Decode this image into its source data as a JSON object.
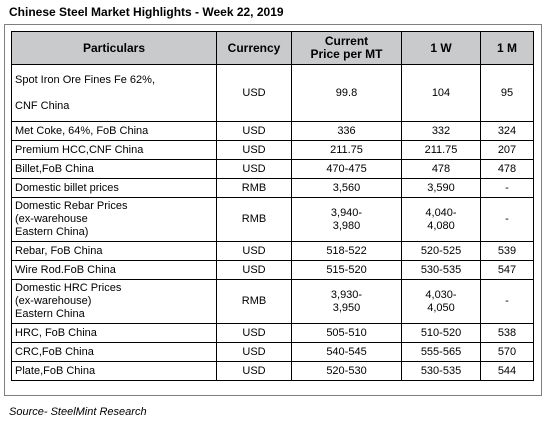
{
  "title": "Chinese Steel Market Highlights - Week 22, 2019",
  "columns": [
    "Particulars",
    "Currency",
    "Current\nPrice per MT",
    "1 W",
    "1 M"
  ],
  "rows": [
    {
      "particulars": "Spot Iron Ore Fines Fe 62%,\n\nCNF China",
      "currency": "USD",
      "current": "99.8",
      "w1": "104",
      "m1": "95"
    },
    {
      "particulars": "Met Coke, 64%, FoB China",
      "currency": "USD",
      "current": "336",
      "w1": "332",
      "m1": "324"
    },
    {
      "particulars": "Premium HCC,CNF China",
      "currency": "USD",
      "current": "211.75",
      "w1": "211.75",
      "m1": "207"
    },
    {
      "particulars": "Billet,FoB China",
      "currency": "USD",
      "current": "470-475",
      "w1": "478",
      "m1": "478"
    },
    {
      "particulars": "Domestic billet prices",
      "currency": "RMB",
      "current": "3,560",
      "w1": "3,590",
      "m1": "-"
    },
    {
      "particulars": "Domestic Rebar Prices\n(ex-warehouse\nEastern China)",
      "currency": "RMB",
      "current": "3,940-\n3,980",
      "w1": "4,040-\n4,080",
      "m1": "-"
    },
    {
      "particulars": "Rebar, FoB China",
      "currency": "USD",
      "current": "518-522",
      "w1": "520-525",
      "m1": "539"
    },
    {
      "particulars": "Wire Rod.FoB China",
      "currency": "USD",
      "current": "515-520",
      "w1": "530-535",
      "m1": "547"
    },
    {
      "particulars": "Domestic HRC Prices\n(ex-warehouse)\nEastern China",
      "currency": "RMB",
      "current": "3,930-\n3,950",
      "w1": "4,030-\n4,050",
      "m1": "-"
    },
    {
      "particulars": "HRC, FoB China",
      "currency": "USD",
      "current": "505-510",
      "w1": "510-520",
      "m1": "538"
    },
    {
      "particulars": "CRC,FoB China",
      "currency": "USD",
      "current": "540-545",
      "w1": "555-565",
      "m1": "570"
    },
    {
      "particulars": "Plate,FoB China",
      "currency": "USD",
      "current": "520-530",
      "w1": "530-535",
      "m1": "544"
    }
  ],
  "source": "Source- SteelMint Research"
}
